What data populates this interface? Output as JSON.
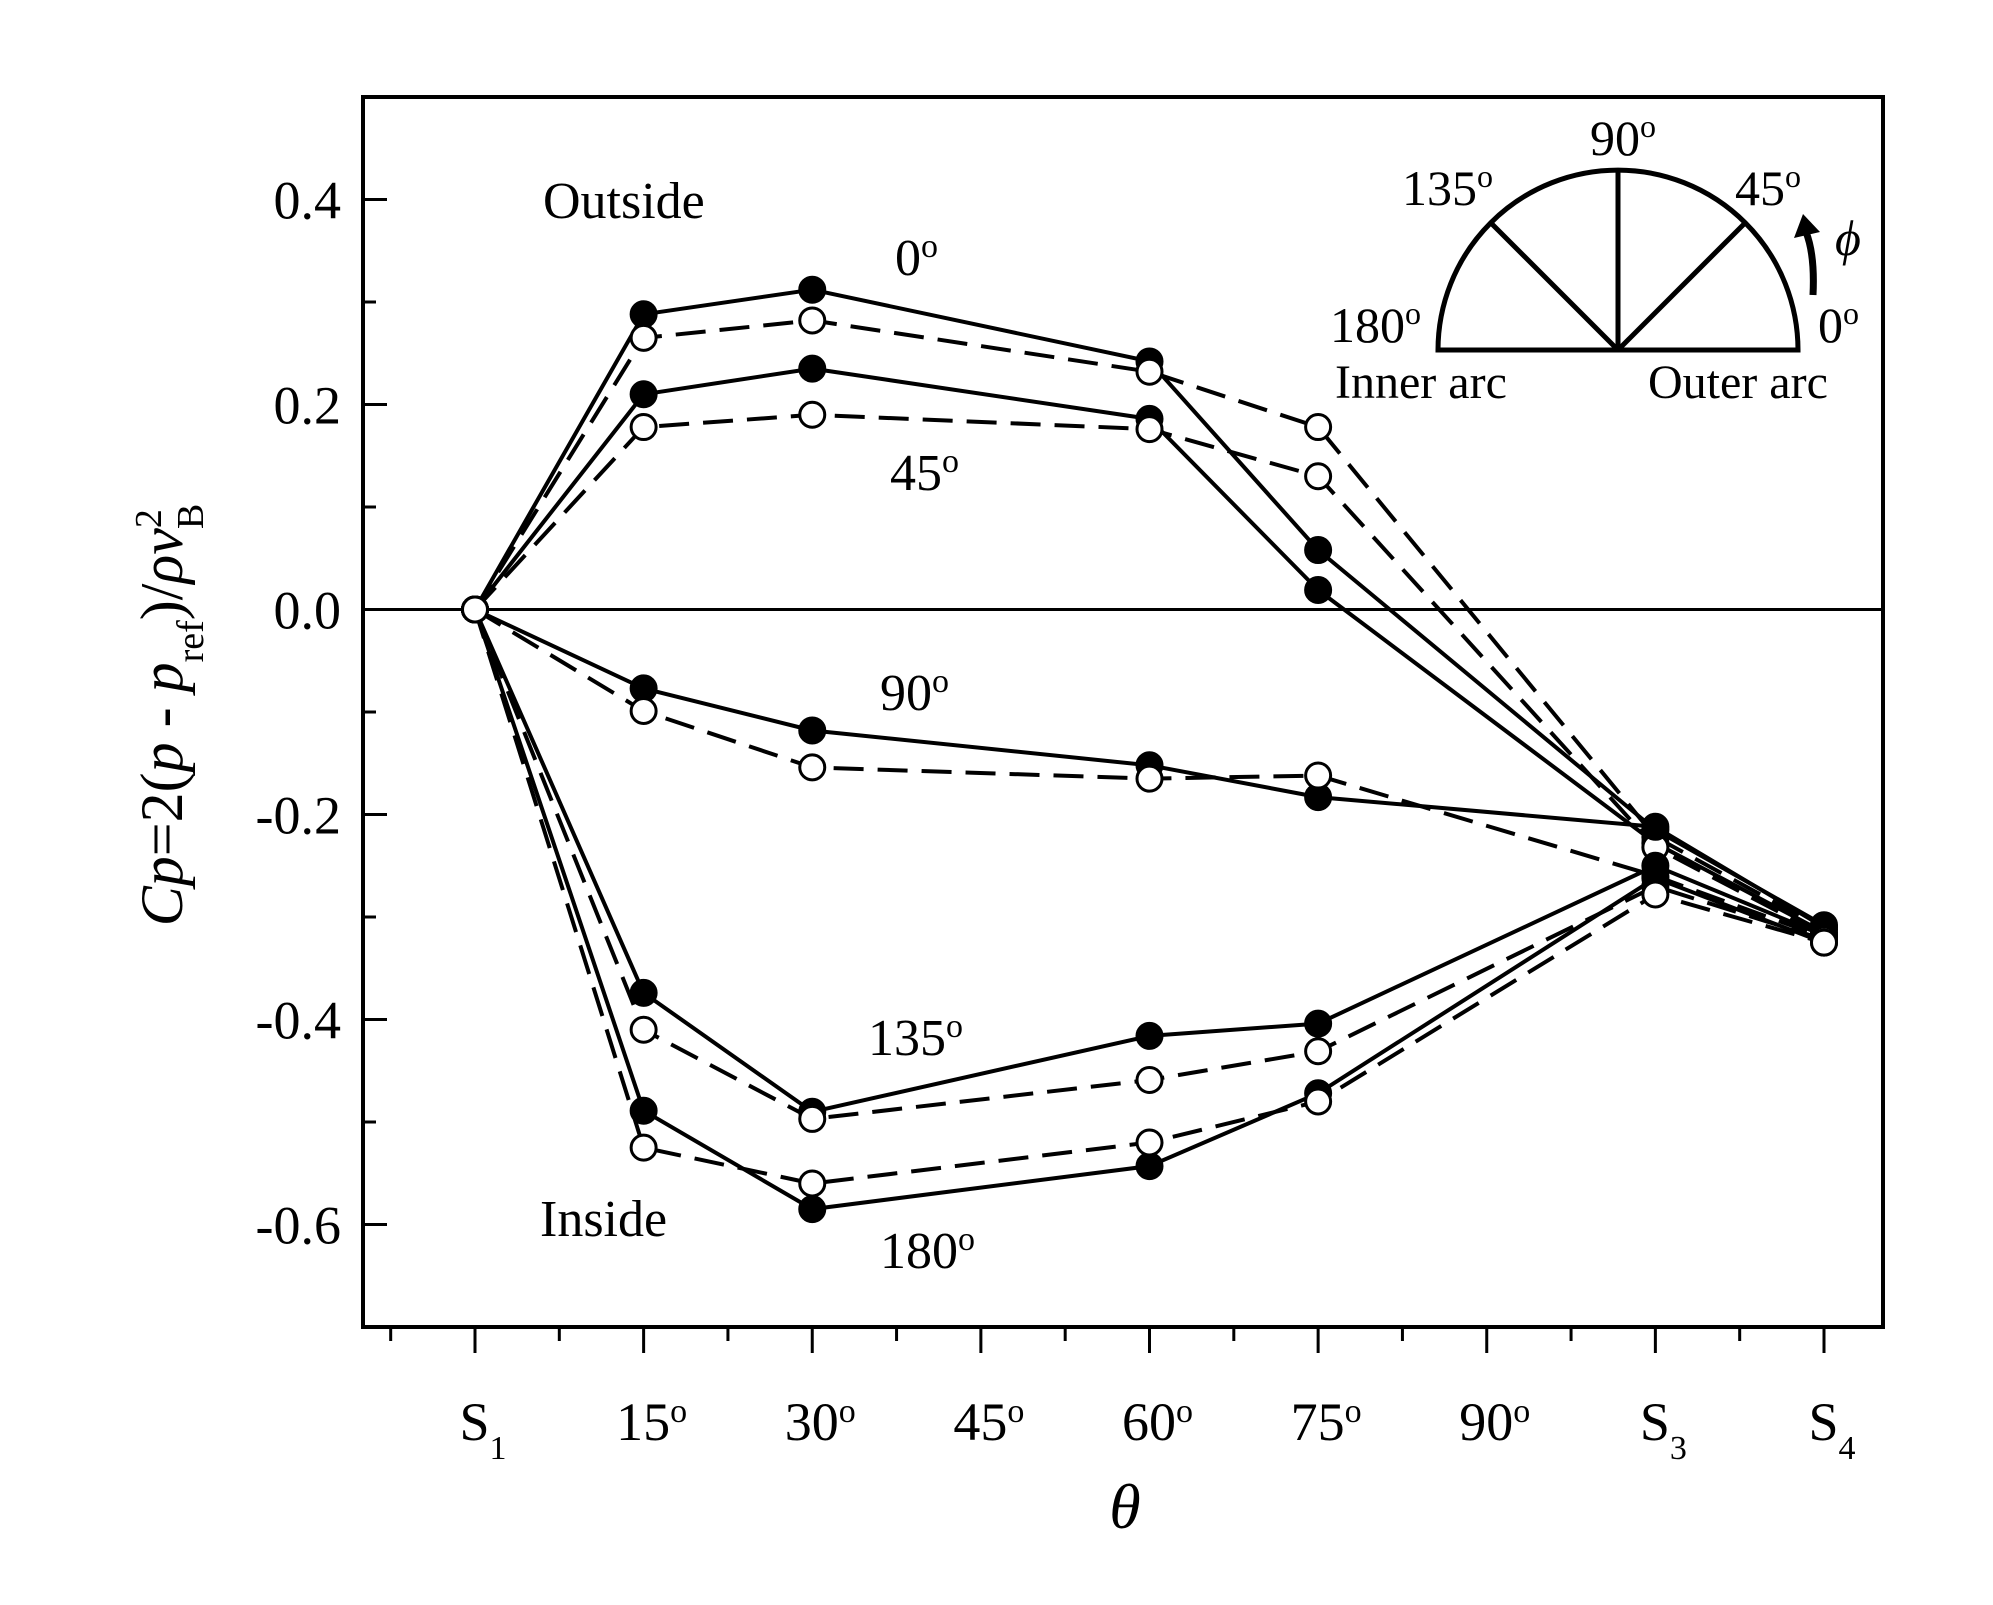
{
  "chart_data": {
    "type": "line",
    "x_categories": [
      "S1",
      "15°",
      "30°",
      "45°",
      "60°",
      "75°",
      "90°",
      "S3",
      "S4"
    ],
    "x_tick_labels": [
      {
        "main": "S",
        "sub": "1"
      },
      {
        "main": "15",
        "sup": "o"
      },
      {
        "main": "30",
        "sup": "o"
      },
      {
        "main": "45",
        "sup": "o"
      },
      {
        "main": "60",
        "sup": "o"
      },
      {
        "main": "75",
        "sup": "o"
      },
      {
        "main": "90",
        "sup": "o"
      },
      {
        "main": "S",
        "sub": "3"
      },
      {
        "main": "S",
        "sub": "4"
      }
    ],
    "y_ticks": [
      "-0.6",
      "-0.4",
      "-0.2",
      "0.0",
      "0.2",
      "0.4"
    ],
    "ylim": [
      -0.7,
      0.5
    ],
    "y_label": "Cp=2(p - pref)/ρv²B",
    "x_label": "θ",
    "line_styles": {
      "solid_filled_markers": "solid",
      "dashed_open_markers": "dashed"
    },
    "series": [
      {
        "group": "0°",
        "style": "solid",
        "marker": "filled",
        "points": [
          [
            "S1",
            0.0
          ],
          [
            "15°",
            0.288
          ],
          [
            "30°",
            0.312
          ],
          [
            "60°",
            0.242
          ],
          [
            "75°",
            0.058
          ],
          [
            "S3",
            -0.215
          ],
          [
            "S4",
            -0.308
          ]
        ]
      },
      {
        "group": "0°",
        "style": "dashed",
        "marker": "open",
        "points": [
          [
            "S1",
            0.0
          ],
          [
            "15°",
            0.265
          ],
          [
            "30°",
            0.282
          ],
          [
            "60°",
            0.232
          ],
          [
            "75°",
            0.178
          ],
          [
            "S3",
            -0.222
          ],
          [
            "S4",
            -0.312
          ]
        ]
      },
      {
        "group": "45°",
        "style": "solid",
        "marker": "filled",
        "points": [
          [
            "S1",
            0.0
          ],
          [
            "15°",
            0.21
          ],
          [
            "30°",
            0.235
          ],
          [
            "60°",
            0.186
          ],
          [
            "75°",
            0.019
          ],
          [
            "S3",
            -0.228
          ],
          [
            "S4",
            -0.315
          ]
        ]
      },
      {
        "group": "45°",
        "style": "dashed",
        "marker": "open",
        "points": [
          [
            "S1",
            0.0
          ],
          [
            "15°",
            0.178
          ],
          [
            "30°",
            0.19
          ],
          [
            "60°",
            0.176
          ],
          [
            "75°",
            0.13
          ],
          [
            "S3",
            -0.232
          ],
          [
            "S4",
            -0.318
          ]
        ]
      },
      {
        "group": "90°",
        "style": "solid",
        "marker": "filled",
        "points": [
          [
            "S1",
            0.0
          ],
          [
            "15°",
            -0.077
          ],
          [
            "30°",
            -0.118
          ],
          [
            "60°",
            -0.152
          ],
          [
            "75°",
            -0.183
          ],
          [
            "S3",
            -0.212
          ],
          [
            "S4",
            -0.31
          ]
        ]
      },
      {
        "group": "90°",
        "style": "dashed",
        "marker": "open",
        "points": [
          [
            "S1",
            0.0
          ],
          [
            "15°",
            -0.099
          ],
          [
            "30°",
            -0.154
          ],
          [
            "60°",
            -0.165
          ],
          [
            "75°",
            -0.162
          ],
          [
            "S3",
            -0.26
          ],
          [
            "S4",
            -0.32
          ]
        ]
      },
      {
        "group": "135°",
        "style": "solid",
        "marker": "filled",
        "points": [
          [
            "S1",
            0.0
          ],
          [
            "15°",
            -0.374
          ],
          [
            "30°",
            -0.49
          ],
          [
            "60°",
            -0.416
          ],
          [
            "75°",
            -0.404
          ],
          [
            "S3",
            -0.25
          ],
          [
            "S4",
            -0.318
          ]
        ]
      },
      {
        "group": "135°",
        "style": "dashed",
        "marker": "open",
        "points": [
          [
            "S1",
            0.0
          ],
          [
            "15°",
            -0.41
          ],
          [
            "30°",
            -0.497
          ],
          [
            "60°",
            -0.459
          ],
          [
            "75°",
            -0.431
          ],
          [
            "S3",
            -0.27
          ],
          [
            "S4",
            -0.322
          ]
        ]
      },
      {
        "group": "180°",
        "style": "solid",
        "marker": "filled",
        "points": [
          [
            "S1",
            0.0
          ],
          [
            "15°",
            -0.489
          ],
          [
            "30°",
            -0.585
          ],
          [
            "60°",
            -0.543
          ],
          [
            "75°",
            -0.472
          ],
          [
            "S3",
            -0.262
          ],
          [
            "S4",
            -0.325
          ]
        ]
      },
      {
        "group": "180°",
        "style": "dashed",
        "marker": "open",
        "points": [
          [
            "S1",
            0.0
          ],
          [
            "15°",
            -0.525
          ],
          [
            "30°",
            -0.56
          ],
          [
            "60°",
            -0.52
          ],
          [
            "75°",
            -0.48
          ],
          [
            "S3",
            -0.278
          ],
          [
            "S4",
            -0.325
          ]
        ]
      }
    ],
    "annotations": {
      "outside": "Outside",
      "inside": "Inside",
      "curve_0": "0",
      "curve_45": "45",
      "curve_90": "90",
      "curve_135": "135",
      "curve_180": "180",
      "degree_mark": "o"
    },
    "inset": {
      "angles": [
        {
          "main": "180",
          "sup": "o"
        },
        {
          "main": "135",
          "sup": "o"
        },
        {
          "main": "90",
          "sup": "o"
        },
        {
          "main": "45",
          "sup": "o"
        },
        {
          "main": "0",
          "sup": "o"
        }
      ],
      "phi": "ϕ",
      "inner_arc": "Inner arc",
      "outer_arc": "Outer arc"
    }
  }
}
